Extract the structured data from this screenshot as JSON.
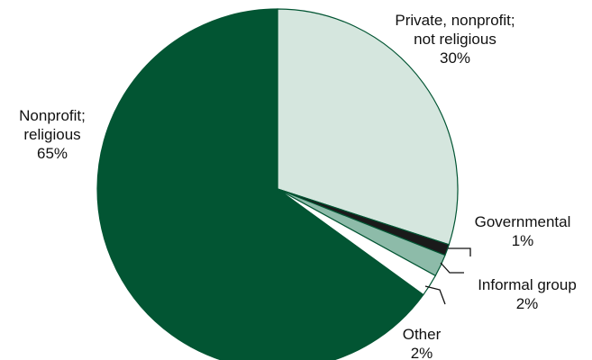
{
  "chart_data": {
    "type": "pie",
    "start": "12 o'clock",
    "direction": "clockwise",
    "slices": [
      {
        "label_lines": [
          "Private, nonprofit;",
          "not religious"
        ],
        "value_text": "30%",
        "value": 30,
        "color": "#d5e6de"
      },
      {
        "label_lines": [
          "Governmental"
        ],
        "value_text": "1%",
        "value": 1,
        "color": "#1a1a1a"
      },
      {
        "label_lines": [
          "Informal group"
        ],
        "value_text": "2%",
        "value": 2,
        "color": "#8dbba9"
      },
      {
        "label_lines": [
          "Other"
        ],
        "value_text": "2%",
        "value": 2,
        "color": "#ffffff"
      },
      {
        "label_lines": [
          "Nonprofit;",
          "religious"
        ],
        "value_text": "65%",
        "value": 65,
        "color": "#025533"
      }
    ],
    "outline_color": "#025533"
  }
}
